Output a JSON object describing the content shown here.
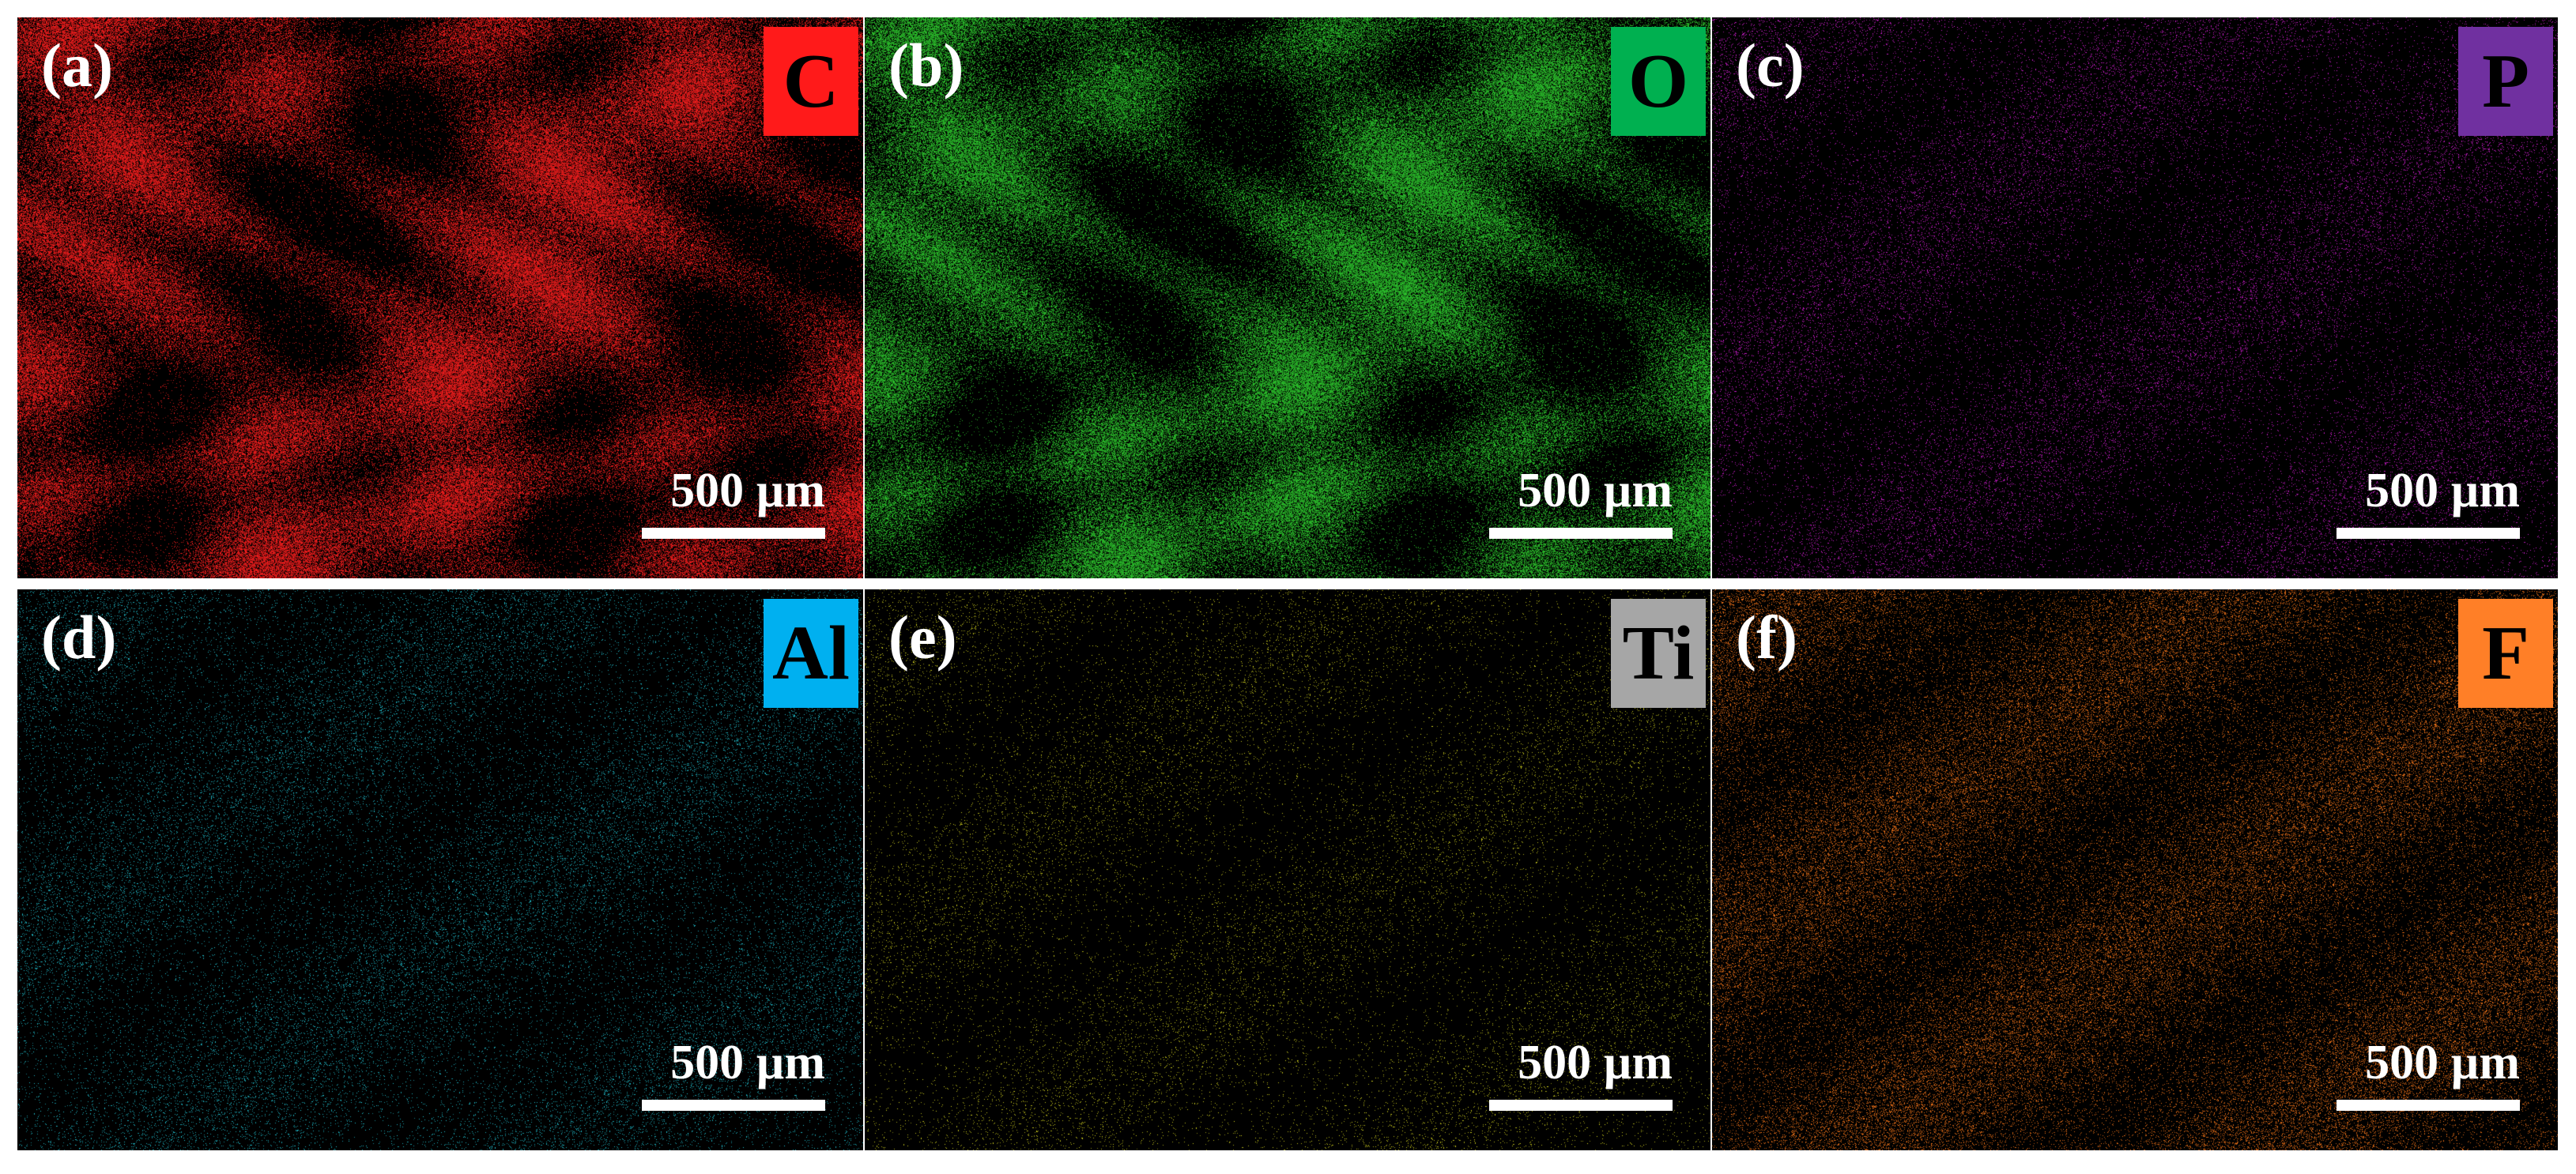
{
  "panels": [
    {
      "tag": "(a)",
      "element": "C",
      "badge_color": "#ff1a1a",
      "dot_color": "#ff1f1f",
      "scale_label": "500 µm",
      "density": "dense"
    },
    {
      "tag": "(b)",
      "element": "O",
      "badge_color": "#00b050",
      "dot_color": "#2ecc2e",
      "scale_label": "500 µm",
      "density": "dense"
    },
    {
      "tag": "(c)",
      "element": "P",
      "badge_color": "#7030a0",
      "dot_color": "#e020e0",
      "scale_label": "500 µm",
      "density": "sparse"
    },
    {
      "tag": "(d)",
      "element": "Al",
      "badge_color": "#00b0f0",
      "dot_color": "#22c8d8",
      "scale_label": "500 µm",
      "density": "sparse"
    },
    {
      "tag": "(e)",
      "element": "Ti",
      "badge_color": "#a6a6a6",
      "dot_color": "#d8d820",
      "scale_label": "500 µm",
      "density": "very-sparse"
    },
    {
      "tag": "(f)",
      "element": "F",
      "badge_color": "#ff7f27",
      "dot_color": "#ff7a1a",
      "scale_label": "500 µm",
      "density": "medium"
    }
  ]
}
